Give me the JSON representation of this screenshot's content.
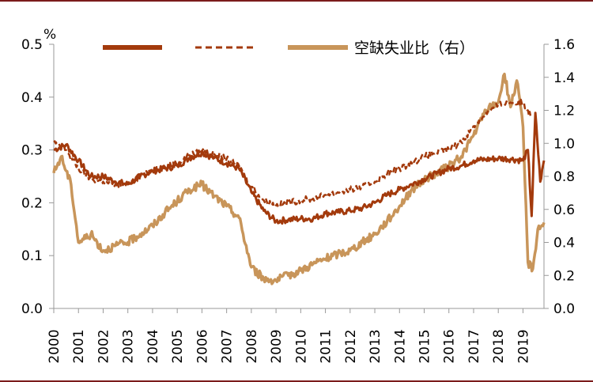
{
  "chart_data": {
    "type": "line",
    "unit_label": "%",
    "x_ticks": [
      "2000",
      "2001",
      "2002",
      "2003",
      "2004",
      "2005",
      "2006",
      "2007",
      "2008",
      "2009",
      "2010",
      "2011",
      "2012",
      "2013",
      "2014",
      "2015",
      "2016",
      "2017",
      "2018",
      "2019"
    ],
    "xlim": [
      2000,
      2019.85
    ],
    "y_left": {
      "ticks": [
        "0.0",
        "0.1",
        "0.2",
        "0.3",
        "0.4",
        "0.5"
      ],
      "ylim": [
        0,
        0.5
      ]
    },
    "y_right": {
      "ticks": [
        "0.0",
        "0.2",
        "0.4",
        "0.6",
        "0.8",
        "1.0",
        "1.2",
        "1.4",
        "1.6"
      ],
      "ylim": [
        0,
        1.6
      ]
    },
    "legend": {
      "placement": "top"
    },
    "colors": {
      "solid": "#a33a0c",
      "dashed": "#a33a0c",
      "ratio": "#c8955a",
      "frame": "#7b1b1b",
      "axis": "#999999"
    },
    "series": [
      {
        "name": "",
        "style": "solid",
        "axis": "left",
        "x": [
          2000,
          2000.5,
          2001,
          2001.5,
          2002,
          2002.5,
          2003,
          2003.5,
          2004,
          2004.5,
          2005,
          2005.5,
          2006,
          2006.5,
          2007,
          2007.5,
          2008,
          2008.5,
          2009,
          2009.5,
          2010,
          2010.5,
          2011,
          2011.5,
          2012,
          2012.5,
          2013,
          2013.5,
          2014,
          2014.5,
          2015,
          2015.5,
          2016,
          2016.5,
          2017,
          2017.5,
          2018,
          2018.5,
          2019,
          2019.2,
          2019.35,
          2019.5,
          2019.7,
          2019.85
        ],
        "y": [
          0.3,
          0.31,
          0.28,
          0.25,
          0.25,
          0.24,
          0.235,
          0.25,
          0.26,
          0.265,
          0.27,
          0.285,
          0.295,
          0.285,
          0.275,
          0.265,
          0.22,
          0.185,
          0.165,
          0.168,
          0.17,
          0.17,
          0.18,
          0.182,
          0.185,
          0.19,
          0.2,
          0.215,
          0.225,
          0.235,
          0.245,
          0.255,
          0.265,
          0.27,
          0.28,
          0.282,
          0.284,
          0.283,
          0.28,
          0.3,
          0.175,
          0.37,
          0.24,
          0.28
        ]
      },
      {
        "name": "",
        "style": "dashed",
        "axis": "left",
        "x": [
          2000,
          2000.5,
          2001,
          2001.5,
          2002,
          2002.5,
          2003,
          2003.5,
          2004,
          2004.5,
          2005,
          2005.5,
          2006,
          2006.5,
          2007,
          2007.5,
          2008,
          2008.5,
          2009,
          2009.5,
          2010,
          2010.5,
          2011,
          2011.5,
          2012,
          2012.5,
          2013,
          2013.5,
          2014,
          2014.5,
          2015,
          2015.5,
          2016,
          2016.5,
          2017,
          2017.5,
          2018,
          2018.5,
          2019,
          2019.2,
          2019.35
        ],
        "y": [
          0.315,
          0.3,
          0.265,
          0.245,
          0.24,
          0.235,
          0.235,
          0.25,
          0.262,
          0.268,
          0.275,
          0.29,
          0.298,
          0.292,
          0.283,
          0.27,
          0.23,
          0.205,
          0.195,
          0.2,
          0.205,
          0.208,
          0.215,
          0.22,
          0.225,
          0.23,
          0.24,
          0.255,
          0.265,
          0.275,
          0.288,
          0.296,
          0.3,
          0.315,
          0.345,
          0.37,
          0.385,
          0.39,
          0.39,
          0.375,
          0.36
        ]
      },
      {
        "name": "空缺失业比（右）",
        "style": "solid-thick",
        "axis": "right",
        "x": [
          2000,
          2000.3,
          2000.7,
          2001,
          2001.5,
          2002,
          2002.5,
          2003,
          2003.5,
          2004,
          2004.5,
          2005,
          2005.5,
          2006,
          2006.5,
          2007,
          2007.5,
          2008,
          2008.5,
          2009,
          2009.5,
          2010,
          2010.5,
          2011,
          2011.5,
          2012,
          2012.5,
          2013,
          2013.5,
          2014,
          2014.5,
          2015,
          2015.5,
          2016,
          2016.5,
          2017,
          2017.5,
          2018,
          2018.25,
          2018.5,
          2018.75,
          2019,
          2019.2,
          2019.4,
          2019.6,
          2019.85
        ],
        "y": [
          0.82,
          0.92,
          0.75,
          0.4,
          0.45,
          0.35,
          0.38,
          0.4,
          0.45,
          0.5,
          0.58,
          0.65,
          0.72,
          0.75,
          0.68,
          0.62,
          0.55,
          0.25,
          0.18,
          0.17,
          0.2,
          0.23,
          0.27,
          0.3,
          0.33,
          0.35,
          0.4,
          0.45,
          0.53,
          0.62,
          0.72,
          0.78,
          0.82,
          0.86,
          0.92,
          1.05,
          1.2,
          1.25,
          1.42,
          1.22,
          1.38,
          1.1,
          0.28,
          0.24,
          0.48,
          0.52
        ]
      }
    ]
  }
}
